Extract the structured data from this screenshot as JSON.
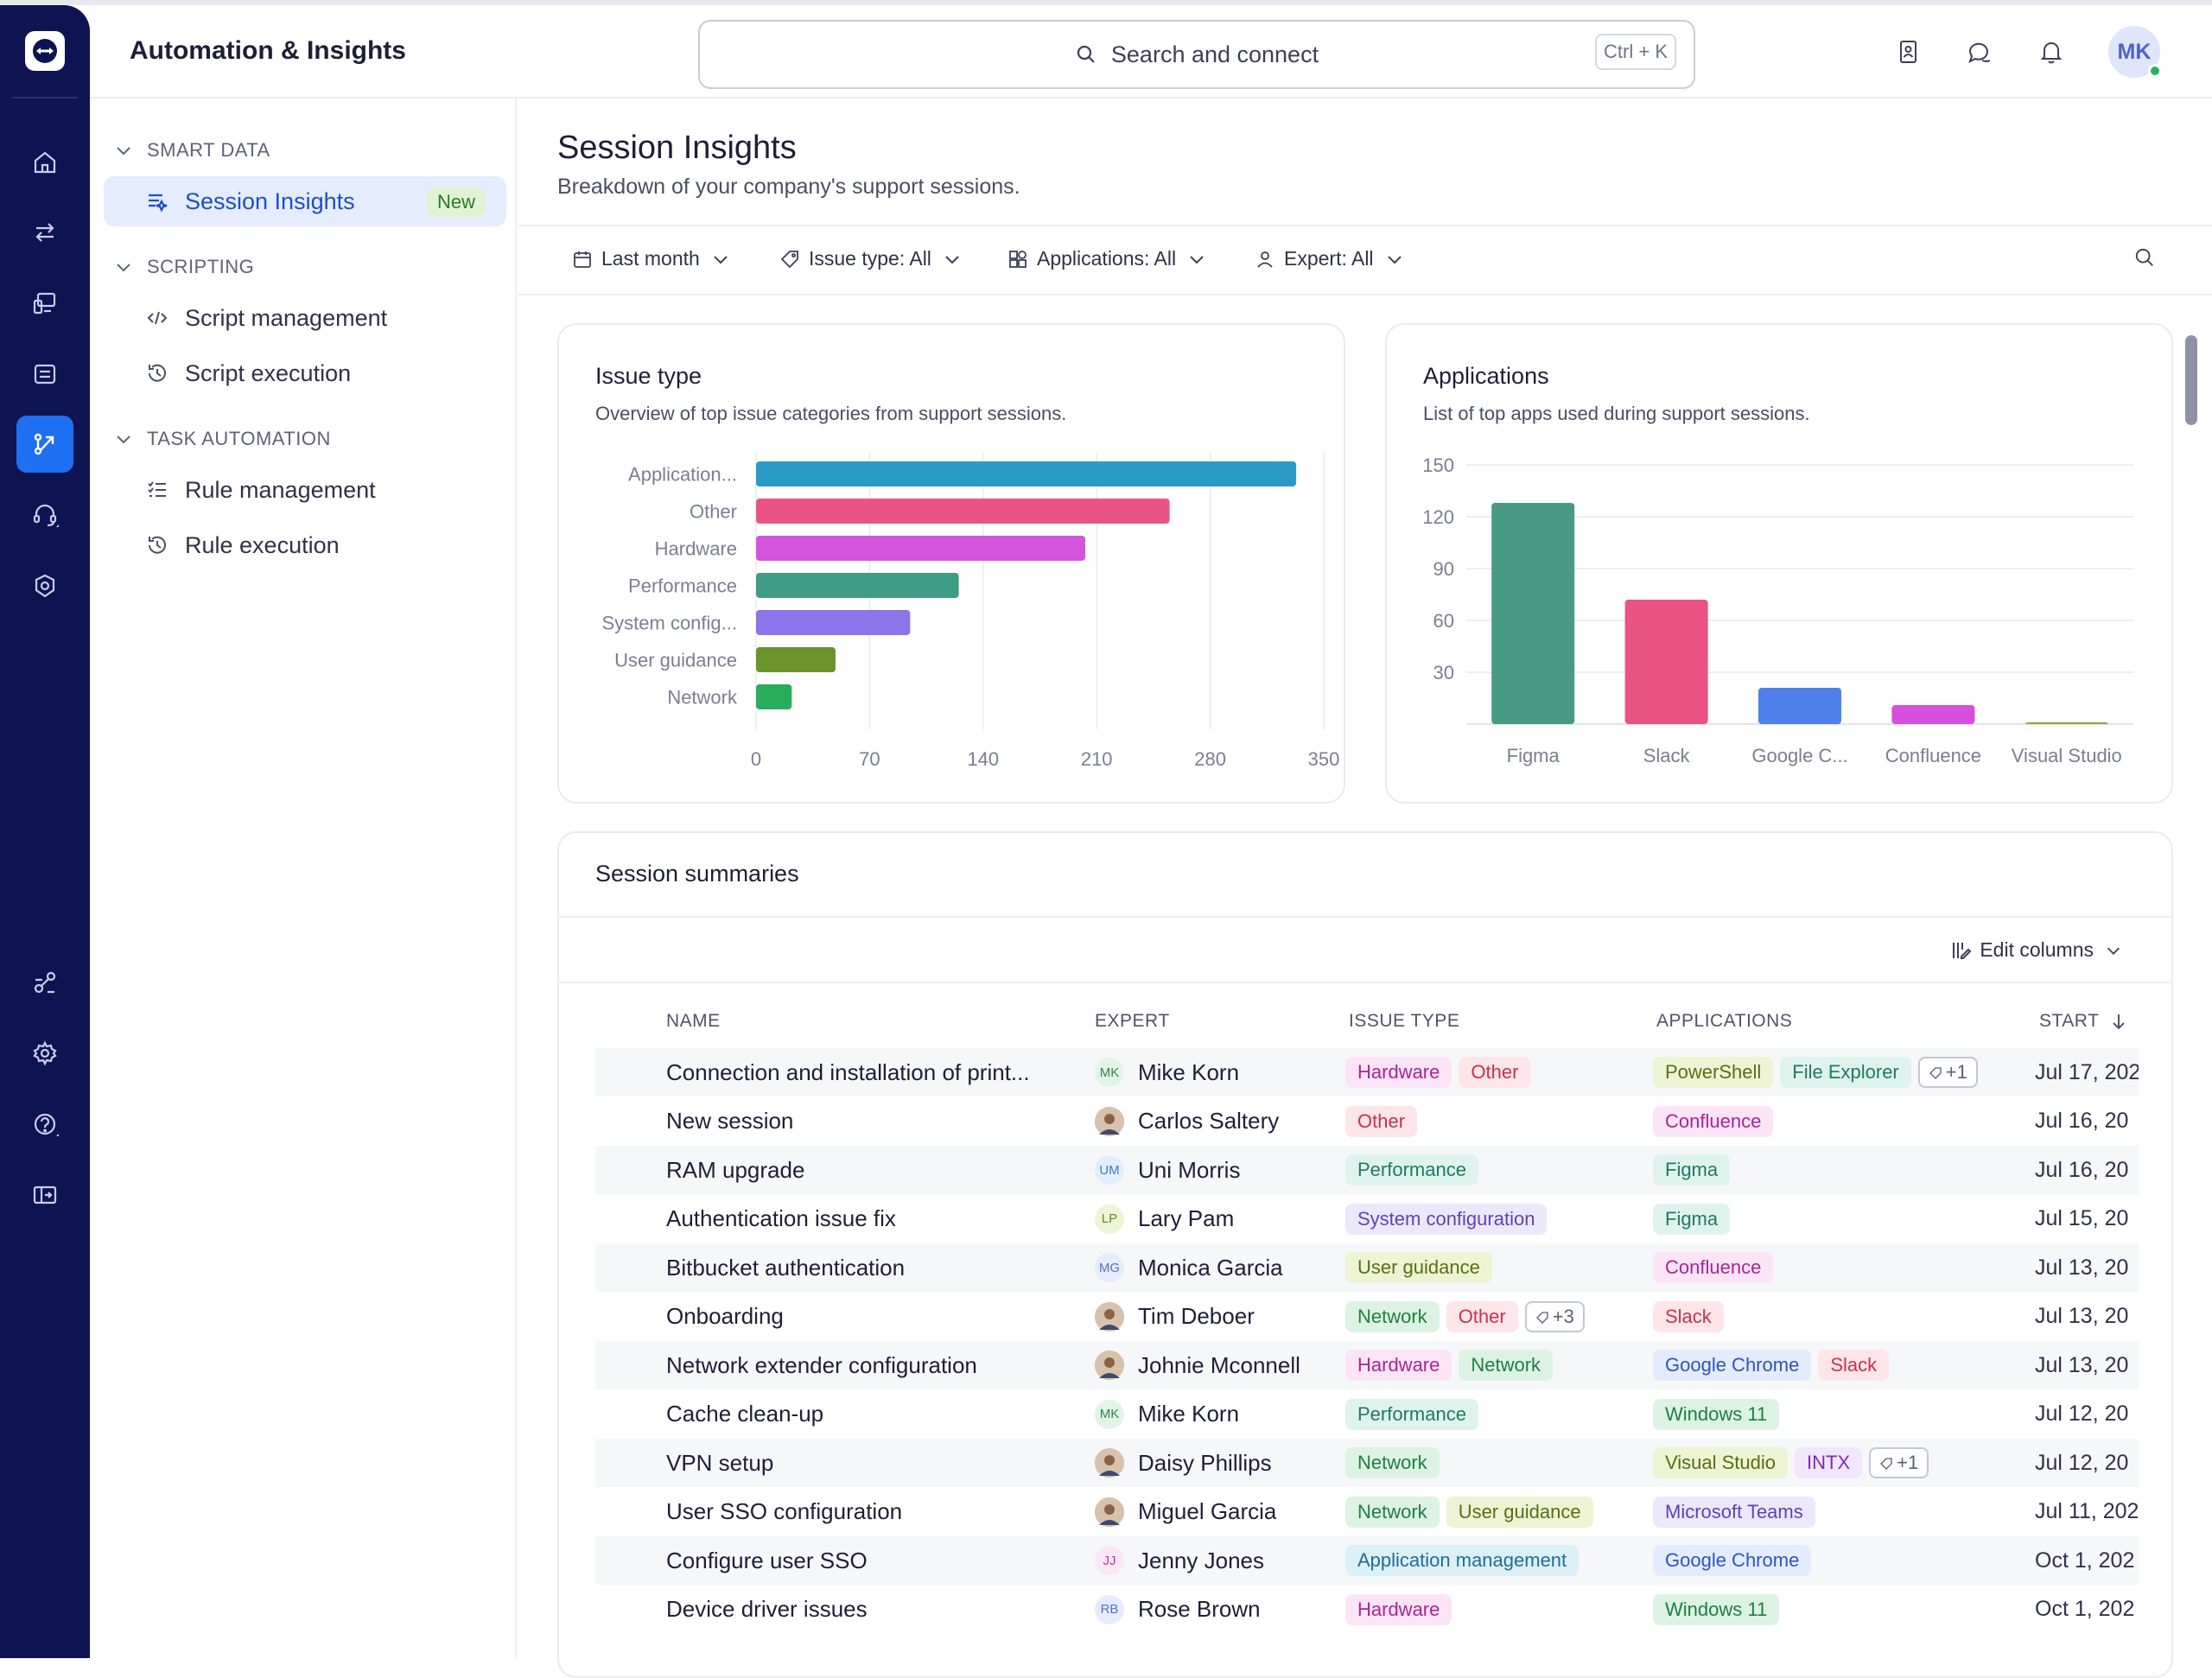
{
  "header": {
    "app_title": "Automation & Insights",
    "search_placeholder": "Search and connect",
    "search_shortcut": "Ctrl + K",
    "avatar_initials": "MK"
  },
  "sidebar": {
    "sections": [
      {
        "label": "SMART DATA"
      },
      {
        "label": "SCRIPTING"
      },
      {
        "label": "TASK AUTOMATION"
      }
    ],
    "items": [
      {
        "label": "Session Insights",
        "badge": "New"
      },
      {
        "label": "Script management"
      },
      {
        "label": "Script execution"
      },
      {
        "label": "Rule management"
      },
      {
        "label": "Rule execution"
      }
    ]
  },
  "page": {
    "title": "Session Insights",
    "subtitle": "Breakdown of your company's support sessions."
  },
  "filters": [
    "Last month",
    "Issue type: All",
    "Applications: All",
    "Expert: All"
  ],
  "issue_card": {
    "title": "Issue type",
    "subtitle": "Overview of top issue categories from support sessions."
  },
  "apps_card": {
    "title": "Applications",
    "subtitle": "List of top apps used during support sessions."
  },
  "chart_data": [
    {
      "type": "bar",
      "orientation": "horizontal",
      "categories": [
        "Application...",
        "Other",
        "Hardware",
        "Performance",
        "System config...",
        "User guidance",
        "Network"
      ],
      "values": [
        333,
        255,
        203,
        125,
        95,
        49,
        22
      ],
      "colors": [
        "#2c9ac6",
        "#ea5484",
        "#d455dd",
        "#3f9c86",
        "#8c75e9",
        "#6c942c",
        "#28ad5d"
      ],
      "xlim": [
        0,
        350
      ],
      "xticks": [
        "0",
        "70",
        "140",
        "210",
        "280",
        "350"
      ],
      "grid": true
    },
    {
      "type": "bar",
      "categories": [
        "Figma",
        "Slack",
        "Google C...",
        "Confluence",
        "Visual Studio"
      ],
      "values": [
        128,
        72,
        21,
        11,
        1
      ],
      "colors": [
        "#489a85",
        "#ea5484",
        "#4f7fea",
        "#d64fdb",
        "#8aa43e"
      ],
      "ylim": [
        0,
        150
      ],
      "yticks": [
        "150",
        "120",
        "90",
        "60",
        "30"
      ],
      "grid": true
    }
  ],
  "table": {
    "title": "Session summaries",
    "edit_columns": "Edit columns",
    "columns": [
      "NAME",
      "EXPERT",
      "ISSUE TYPE",
      "APPLICATIONS",
      "START"
    ],
    "rows": [
      {
        "name": "Connection and installation of print...",
        "expert": "Mike Korn",
        "initials": "MK",
        "issues": [
          "Hardware",
          "Other"
        ],
        "apps": [
          "PowerShell",
          "File Explorer"
        ],
        "apps_more": "+1",
        "start": "Jul 17, 202"
      },
      {
        "name": "New session",
        "expert": "Carlos Saltery",
        "initials": "",
        "issues": [
          "Other"
        ],
        "apps": [
          "Confluence"
        ],
        "start": "Jul 16, 20"
      },
      {
        "name": "RAM upgrade",
        "expert": "Uni Morris",
        "initials": "UM",
        "issues": [
          "Performance"
        ],
        "apps": [
          "Figma"
        ],
        "start": "Jul 16, 20"
      },
      {
        "name": "Authentication issue fix",
        "expert": "Lary Pam",
        "initials": "LP",
        "issues": [
          "System configuration"
        ],
        "apps": [
          "Figma"
        ],
        "start": "Jul 15, 20"
      },
      {
        "name": "Bitbucket authentication",
        "expert": "Monica Garcia",
        "initials": "MG",
        "issues": [
          "User guidance"
        ],
        "apps": [
          "Confluence"
        ],
        "start": "Jul 13, 20"
      },
      {
        "name": "Onboarding",
        "expert": "Tim Deboer",
        "initials": "",
        "issues": [
          "Network",
          "Other"
        ],
        "issues_more": "+3",
        "apps": [
          "Slack"
        ],
        "start": "Jul 13, 20"
      },
      {
        "name": "Network extender configuration",
        "expert": "Johnie Mconnell",
        "initials": "",
        "issues": [
          "Hardware",
          "Network"
        ],
        "apps": [
          "Google Chrome",
          "Slack"
        ],
        "start": "Jul 13, 20"
      },
      {
        "name": "Cache clean-up",
        "expert": "Mike Korn",
        "initials": "MK",
        "issues": [
          "Performance"
        ],
        "apps": [
          "Windows 11"
        ],
        "start": "Jul 12, 20"
      },
      {
        "name": "VPN setup",
        "expert": "Daisy Phillips",
        "initials": "",
        "issues": [
          "Network"
        ],
        "apps": [
          "Visual Studio",
          "INTX"
        ],
        "apps_more": "+1",
        "start": "Jul 12, 20"
      },
      {
        "name": "User SSO configuration",
        "expert": "Miguel Garcia",
        "initials": "",
        "issues": [
          "Network",
          "User guidance"
        ],
        "apps": [
          "Microsoft Teams"
        ],
        "start": "Jul 11, 202"
      },
      {
        "name": "Configure user SSO",
        "expert": "Jenny Jones",
        "initials": "JJ",
        "issues": [
          "Application management"
        ],
        "apps": [
          "Google Chrome"
        ],
        "start": "Oct 1, 202"
      },
      {
        "name": "Device driver issues",
        "expert": "Rose Brown",
        "initials": "RB",
        "issues": [
          "Hardware"
        ],
        "apps": [
          "Windows 11"
        ],
        "start": "Oct 1, 202"
      }
    ]
  },
  "tag_colors": {
    "Hardware": [
      "#fbe4f6",
      "#a7249a"
    ],
    "Other": [
      "#fde5ea",
      "#c2344f"
    ],
    "Performance": [
      "#dff3ed",
      "#217866"
    ],
    "System configuration": [
      "#ece8fb",
      "#5b43b8"
    ],
    "User guidance": [
      "#eef3d3",
      "#5a6d15"
    ],
    "Network": [
      "#dcf3e4",
      "#1f7f42"
    ],
    "Application management": [
      "#dcf0f8",
      "#1d6f91"
    ],
    "PowerShell": [
      "#eef3d3",
      "#5a6d15"
    ],
    "File Explorer": [
      "#dff3ed",
      "#217866"
    ],
    "Confluence": [
      "#fbe4f6",
      "#a7249a"
    ],
    "Figma": [
      "#dff3ed",
      "#217866"
    ],
    "Slack": [
      "#fde5ea",
      "#c2344f"
    ],
    "Google Chrome": [
      "#e4ebfc",
      "#2c56b8"
    ],
    "Windows 11": [
      "#dcf3e4",
      "#1f7f42"
    ],
    "Visual Studio": [
      "#eef3d3",
      "#5a6d15"
    ],
    "INTX": [
      "#f1e6fb",
      "#7a2fb0"
    ],
    "Microsoft Teams": [
      "#ece8fb",
      "#5b43b8"
    ]
  },
  "avatar_colors": {
    "MK": [
      "#e2f4e8",
      "#2b8a4c"
    ],
    "UM": [
      "#e2effb",
      "#3b7bc4"
    ],
    "LP": [
      "#eef5d6",
      "#6f8a1c"
    ],
    "MG": [
      "#e6ecfb",
      "#5574c7"
    ],
    "JJ": [
      "#fbe6f5",
      "#b0389c"
    ],
    "RB": [
      "#e6ecfb",
      "#5574c7"
    ]
  }
}
